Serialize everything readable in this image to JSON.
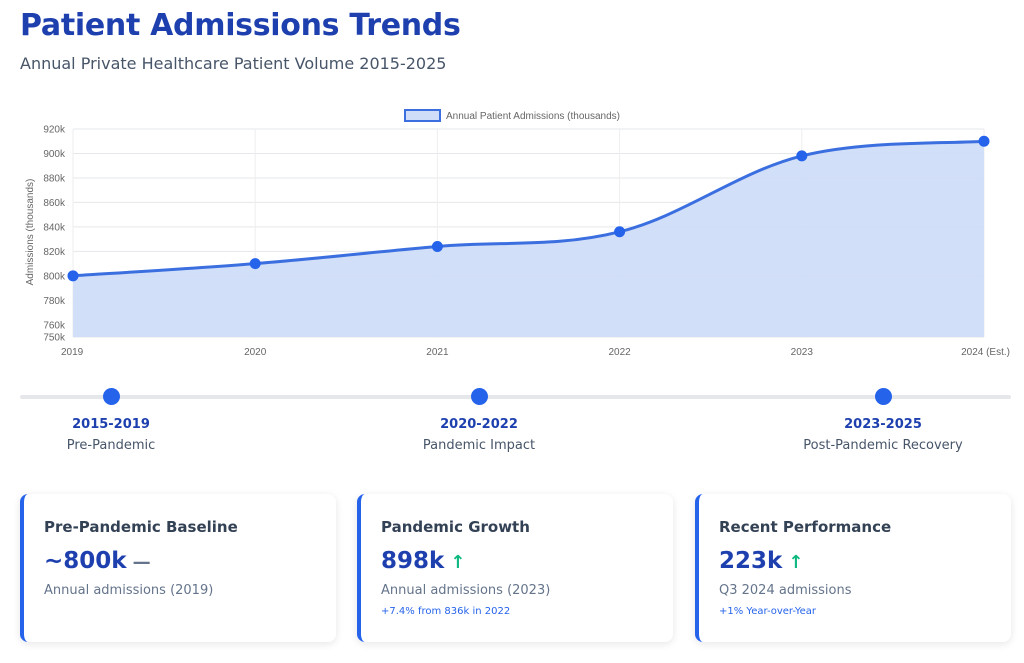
{
  "header": {
    "title": "Patient Admissions Trends",
    "subtitle": "Annual Private Healthcare Patient Volume 2015-2025"
  },
  "colors": {
    "accent": "#2563eb",
    "title": "#1e40af",
    "fill": "#d0ddf8",
    "positive": "#10b981"
  },
  "chart_data": {
    "type": "area",
    "x": [
      "2019",
      "2020",
      "2021",
      "2022",
      "2023",
      "2024 (Est.)"
    ],
    "series": [
      {
        "name": "Annual Patient Admissions (thousands)",
        "values": [
          800,
          810,
          824,
          836,
          898,
          910
        ]
      }
    ],
    "ylabel": "Admissions (thousands)",
    "xlabel": "",
    "ylim": [
      750,
      920
    ],
    "yticks": [
      750,
      760,
      780,
      800,
      820,
      840,
      860,
      880,
      900,
      920
    ],
    "ytick_labels": [
      "750k",
      "760k",
      "780k",
      "800k",
      "820k",
      "840k",
      "860k",
      "880k",
      "900k",
      "920k"
    ],
    "grid": true,
    "legend": "top-center"
  },
  "timeline": [
    {
      "period": "2015-2019",
      "phase": "Pre-Pandemic"
    },
    {
      "period": "2020-2022",
      "phase": "Pandemic Impact"
    },
    {
      "period": "2023-2025",
      "phase": "Post-Pandemic Recovery"
    }
  ],
  "cards": [
    {
      "title": "Pre-Pandemic Baseline",
      "value": "~800k",
      "trend_icon": "flat-dash-icon",
      "trend_glyph": "—",
      "description": "Annual admissions (2019)",
      "note": ""
    },
    {
      "title": "Pandemic Growth",
      "value": "898k",
      "trend_icon": "arrow-up-icon",
      "trend_glyph": "↑",
      "description": "Annual admissions (2023)",
      "note": "+7.4% from 836k in 2022"
    },
    {
      "title": "Recent Performance",
      "value": "223k",
      "trend_icon": "arrow-up-icon",
      "trend_glyph": "↑",
      "description": "Q3 2024 admissions",
      "note": "+1% Year-over-Year"
    }
  ]
}
